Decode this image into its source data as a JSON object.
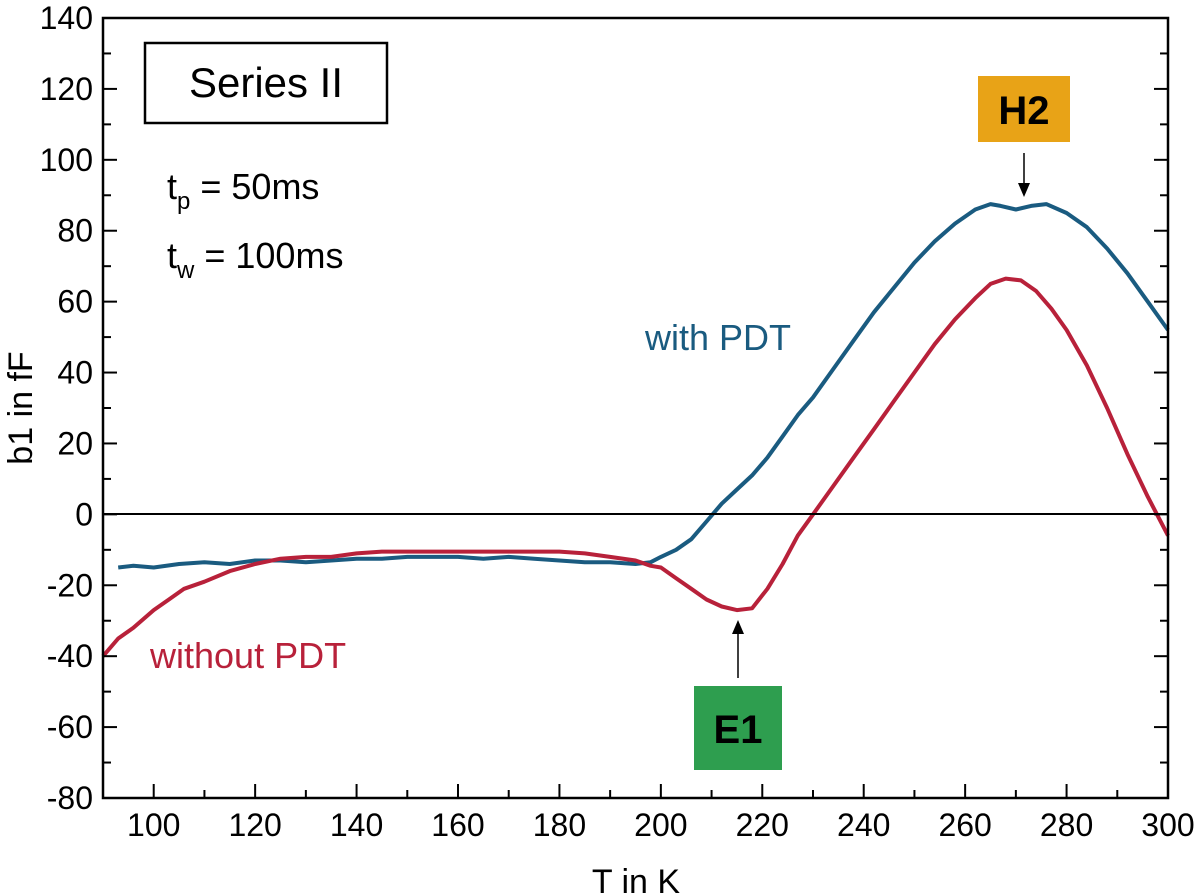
{
  "chart_data": {
    "type": "line",
    "xlabel": "T in K",
    "ylabel": "b1 in fF",
    "xlim": [
      90,
      300
    ],
    "ylim": [
      -80,
      140
    ],
    "xticks": [
      100,
      120,
      140,
      160,
      180,
      200,
      220,
      240,
      260,
      280,
      300
    ],
    "yticks": [
      -80,
      -60,
      -40,
      -20,
      0,
      20,
      40,
      60,
      80,
      100,
      120,
      140
    ],
    "zero_line": true,
    "grid": false,
    "legend": "none",
    "colors": {
      "with_pdt": "#1a5b80",
      "without_pdt": "#b8213a",
      "h2_badge": "#e8a317",
      "e1_badge": "#2e9e4f"
    },
    "series": [
      {
        "name": "with PDT",
        "color": "#1a5b80",
        "x": [
          93,
          96,
          100,
          105,
          110,
          115,
          120,
          125,
          130,
          135,
          140,
          145,
          150,
          155,
          160,
          165,
          170,
          175,
          180,
          185,
          190,
          195,
          198,
          200,
          203,
          206,
          209,
          212,
          215,
          218,
          221,
          224,
          227,
          230,
          234,
          238,
          242,
          246,
          250,
          254,
          258,
          262,
          265,
          267,
          270,
          273,
          276,
          280,
          284,
          288,
          292,
          296,
          300
        ],
        "y": [
          -15,
          -14.5,
          -15,
          -14,
          -13.5,
          -14,
          -13,
          -13,
          -13.5,
          -13,
          -12.5,
          -12.5,
          -12,
          -12,
          -12,
          -12.5,
          -12,
          -12.5,
          -13,
          -13.5,
          -13.5,
          -14,
          -13.5,
          -12,
          -10,
          -7,
          -2,
          3,
          7,
          11,
          16,
          22,
          28,
          33,
          41,
          49,
          57,
          64,
          71,
          77,
          82,
          86,
          87.5,
          87,
          86,
          87,
          87.5,
          85,
          81,
          75,
          68,
          60,
          52
        ]
      },
      {
        "name": "without PDT",
        "color": "#b8213a",
        "x": [
          90,
          93,
          96,
          100,
          103,
          106,
          110,
          115,
          120,
          125,
          130,
          135,
          140,
          145,
          150,
          155,
          160,
          165,
          170,
          175,
          180,
          185,
          190,
          195,
          198,
          200,
          203,
          206,
          209,
          212,
          215,
          218,
          221,
          224,
          227,
          230,
          234,
          238,
          242,
          246,
          250,
          254,
          258,
          262,
          265,
          268,
          271,
          274,
          277,
          280,
          284,
          288,
          292,
          296,
          300
        ],
        "y": [
          -40,
          -35,
          -32,
          -27,
          -24,
          -21,
          -19,
          -16,
          -14,
          -12.5,
          -12,
          -12,
          -11,
          -10.5,
          -10.5,
          -10.5,
          -10.5,
          -10.5,
          -10.5,
          -10.5,
          -10.5,
          -11,
          -12,
          -13,
          -14.5,
          -15,
          -18,
          -21,
          -24,
          -26,
          -27,
          -26.5,
          -21,
          -14,
          -6,
          0,
          8,
          16,
          24,
          32,
          40,
          48,
          55,
          61,
          65,
          66.5,
          66,
          63,
          58,
          52,
          42,
          30,
          17,
          5,
          -6
        ]
      }
    ],
    "annotations": {
      "box_label": "Series II",
      "tp_base": "t",
      "tp_sub": "p",
      "tp_value": " = 50ms",
      "tw_base": "t",
      "tw_sub": "w",
      "tw_value": " = 100ms",
      "with_label": "with PDT",
      "without_label": "without PDT",
      "h2_label": "H2",
      "e1_label": "E1"
    }
  }
}
